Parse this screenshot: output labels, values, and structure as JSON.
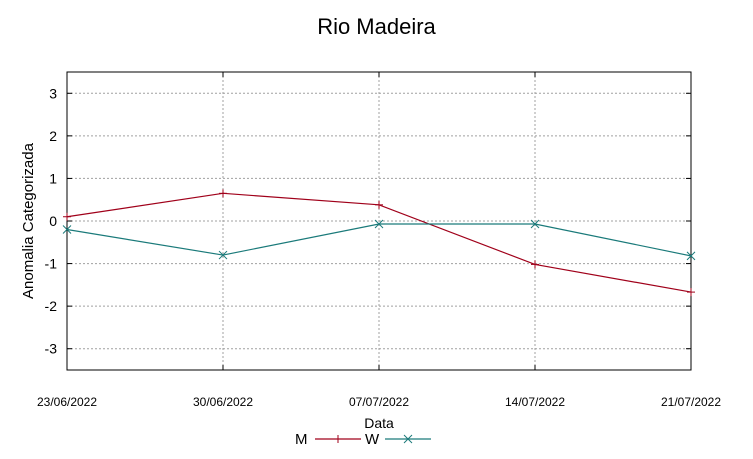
{
  "chart_data": {
    "type": "line",
    "title": "Rio Madeira",
    "xlabel": "Data",
    "ylabel": "Anomalia Categorizada",
    "x": [
      "23/06/2022",
      "30/06/2022",
      "07/07/2022",
      "14/07/2022",
      "21/07/2022"
    ],
    "ylim": [
      -3.5,
      3.5
    ],
    "yticks": [
      -3,
      -2,
      -1,
      0,
      1,
      2,
      3
    ],
    "grid": true,
    "legend_position": "bottom",
    "series": [
      {
        "name": "M",
        "color": "#a0001a",
        "marker": "+",
        "values": [
          0.1,
          0.65,
          0.38,
          -1.02,
          -1.67
        ]
      },
      {
        "name": "W",
        "color": "#1a7a7a",
        "marker": "x",
        "values": [
          -0.2,
          -0.8,
          -0.07,
          -0.07,
          -0.82
        ]
      }
    ]
  }
}
